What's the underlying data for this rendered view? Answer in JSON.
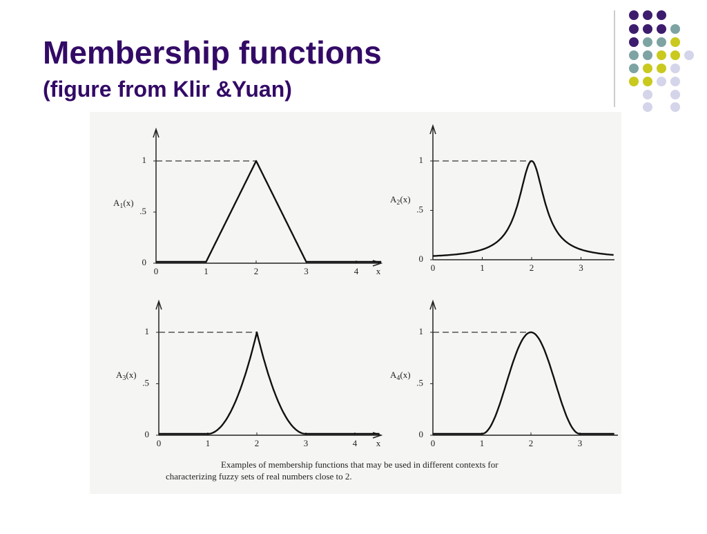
{
  "header": {
    "title": "Membership functions",
    "subtitle": "(figure from Klir &Yuan)"
  },
  "figure": {
    "panels": [
      {
        "label": {
          "name": "A",
          "sub": "1",
          "arg": "(x)"
        },
        "yticks": [
          "1",
          ".5",
          "0"
        ],
        "xticks": [
          "0",
          "1",
          "2",
          "3",
          "4",
          "x"
        ]
      },
      {
        "label": {
          "name": "A",
          "sub": "2",
          "arg": "(x)"
        },
        "yticks": [
          "1",
          ".5",
          "0"
        ],
        "xticks": [
          "0",
          "1",
          "2",
          "3"
        ]
      },
      {
        "label": {
          "name": "A",
          "sub": "3",
          "arg": "(x)"
        },
        "yticks": [
          "1",
          ".5",
          "0"
        ],
        "xticks": [
          "0",
          "1",
          "2",
          "3",
          "4",
          "x"
        ]
      },
      {
        "label": {
          "name": "A",
          "sub": "4",
          "arg": "(x)"
        },
        "yticks": [
          "1",
          ".5",
          "0"
        ],
        "xticks": [
          "0",
          "1",
          "2",
          "3"
        ]
      }
    ],
    "caption": [
      "Examples of membership functions that may be used in different contexts for",
      "characterizing fuzzy sets of real numbers close to 2."
    ]
  }
}
